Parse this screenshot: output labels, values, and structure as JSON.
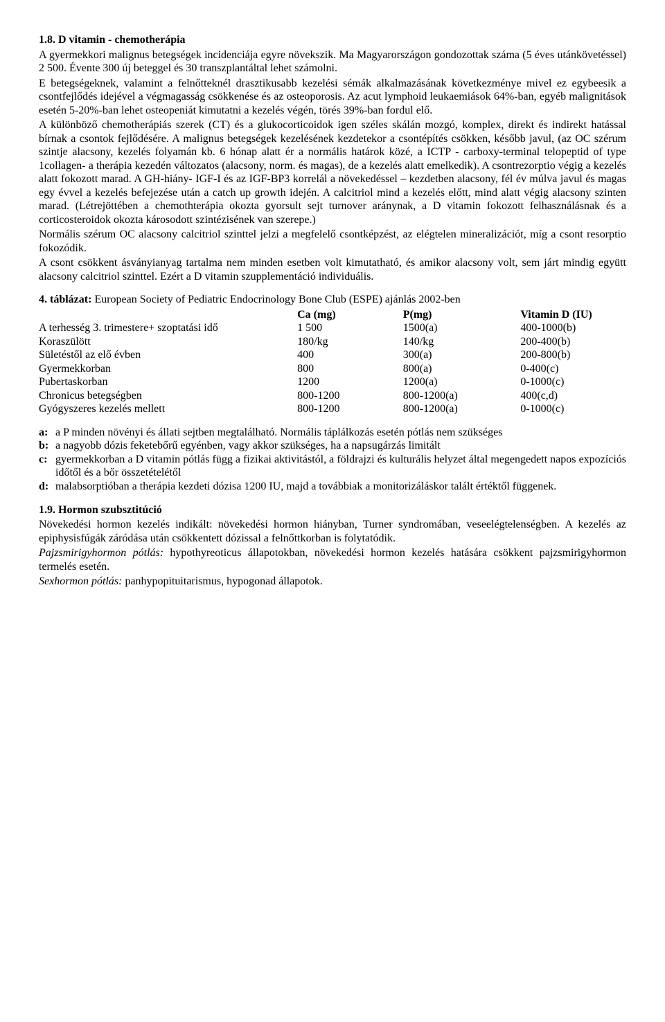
{
  "section1": {
    "heading": "1.8. D vitamin - chemotherápia",
    "para1": "A gyermekkori malignus betegségek incidenciája egyre növekszik. Ma Magyarországon gondozottak száma (5 éves utánkövetéssel) 2 500. Évente 300 új beteggel és 30 transzplantáltal lehet számolni.",
    "para2": "E betegségeknek, valamint a felnőtteknél drasztikusabb kezelési sémák alkalmazásának következménye mivel ez egybeesik a csontfejlődés idejével a végmagasság csökkenése és az osteoporosis. Az acut lymphoid leukaemiások 64%-ban, egyéb malignitások esetén 5-20%-ban lehet osteopeniát kimutatni a kezelés végén, törés 39%-ban fordul elő.",
    "para3": "A különböző chemotherápiás szerek (CT) és a glukocorticoidok igen széles skálán mozgó, komplex, direkt és indirekt hatással bírnak a csontok fejlődésére. A malignus betegségek kezelésének kezdetekor a csontépítés csökken, később javul, (az OC szérum szintje alacsony, kezelés folyamán kb. 6 hónap alatt ér a normális határok közé, a ICTP - carboxy-terminal telopeptid of type 1collagen- a therápia kezedén változatos (alacsony, norm. és magas), de a kezelés alatt emelkedik). A csontrezorptio végig a kezelés alatt fokozott marad. A GH-hiány- IGF-I és az IGF-BP3 korrelál a növekedéssel – kezdetben alacsony, fél év múlva javul és magas egy évvel a kezelés befejezése után a catch up growth idején. A calcitriol mind a kezelés előtt, mind alatt végig alacsony szinten marad. (Létrejöttében a chemothterápia okozta gyorsult sejt turnover aránynak, a D vitamin fokozott felhasználásnak és a corticosteroidok okozta károsodott szintézisének van szerepe.)",
    "para4": "Normális szérum OC alacsony calcitriol szinttel jelzi a megfelelő csontképzést, az elégtelen mineralizációt, míg a csont resorptio fokozódik.",
    "para5": "A csont csökkent ásványianyag tartalma nem minden esetben volt kimutatható, és amikor alacsony volt, sem járt mindig együtt alacsony calcitriol szinttel. Ezért a D vitamin szupplementáció individuális."
  },
  "table4": {
    "title_bold": "4. táblázat:",
    "title_rest": " European Society of Pediatric Endocrinology  Bone Club (ESPE) ajánlás 2002-ben",
    "headers": {
      "label": "",
      "ca": "Ca (mg)",
      "p": "P(mg)",
      "d": "Vitamin D (IU)"
    },
    "rows": [
      {
        "label": "A terhesség 3. trimestere+ szoptatási idő",
        "ca": "1 500",
        "p": "1500(a)",
        "d": "400-1000(b)"
      },
      {
        "label": "Koraszülött",
        "ca": "180/kg",
        "p": "140/kg",
        "d": "200-400(b)"
      },
      {
        "label": "Sületéstől az elő évben",
        "ca": "400",
        "p": "300(a)",
        "d": "200-800(b)"
      },
      {
        "label": "Gyermekkorban",
        "ca": "800",
        "p": "800(a)",
        "d": "0-400(c)"
      },
      {
        "label": "Pubertaskorban",
        "ca": "1200",
        "p": "1200(a)",
        "d": "0-1000(c)"
      },
      {
        "label": "Chronicus betegségben",
        "ca": "800-1200",
        "p": "800-1200(a)",
        "d": "400(c,d)"
      },
      {
        "label": "Gyógyszeres kezelés mellett",
        "ca": "800-1200",
        "p": "800-1200(a)",
        "d": "0-1000(c)"
      }
    ]
  },
  "notes": {
    "a": {
      "k": "a:",
      "t": "a P minden növényi és állati sejtben megtalálható. Normális táplálkozás esetén pótlás nem szükséges"
    },
    "b": {
      "k": "b:",
      "t": "a nagyobb dózis feketebőrű egyénben, vagy akkor szükséges, ha a napsugárzás limitált"
    },
    "c": {
      "k": "c:",
      "t": "gyermekkorban a D vitamin pótlás függ a fizikai aktivitástól, a földrajzi és kulturális helyzet által megengedett napos expozíciós időtől és a bőr összetételétől"
    },
    "d": {
      "k": "d:",
      "t": "malabsorptióban a therápia  kezdeti dózisa 1200 IU, majd a továbbiak a monitorizáláskor talált értéktől függenek."
    }
  },
  "section2": {
    "heading": "1.9. Hormon szubsztitúció",
    "para1": "Növekedési hormon kezelés indikált: növekedési hormon hiányban, Turner syndromában, veseelégtelenségben. A kezelés az epiphysisfúgák záródása után csökkentett dózissal a felnőttkorban is folytatódik.",
    "para2_i": "Pajzsmirigyhormon pótlás:",
    "para2_r": " hypothyreoticus állapotokban, növekedési hormon kezelés hatására csökkent pajzsmirigyhormon termelés esetén.",
    "para3_i": "Sexhormon pótlás:",
    "para3_r": " panhypopituitarismus, hypogonad állapotok."
  }
}
